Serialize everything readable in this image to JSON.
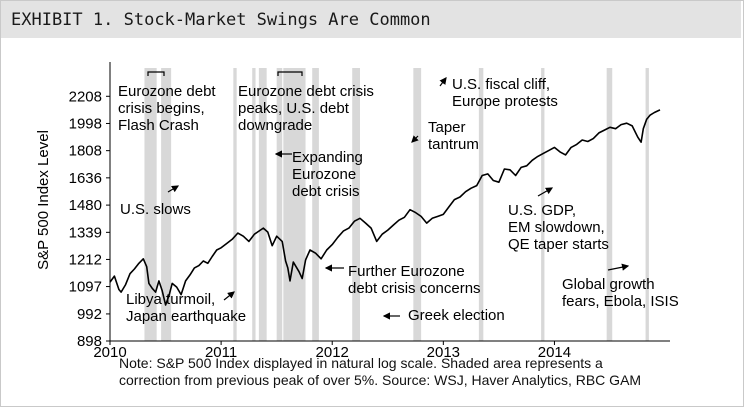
{
  "header": {
    "exhibit": "EXHIBIT 1.",
    "title": "Stock-Market Swings Are Common"
  },
  "note": {
    "line1": "Note: S&P 500 Index displayed in natural log scale. Shaded area represents a",
    "line2": "correction from previous peak of over 5%. Source: WSJ, Haver Analytics, RBC GAM"
  },
  "colors": {
    "line": "#000000",
    "shade": "#d8d8d8",
    "header_bg": "#e3e3e3"
  },
  "chart_data": {
    "type": "line",
    "title": "",
    "xlabel": "",
    "ylabel": "S&P 500 Index Level",
    "y_scale": "log",
    "xlim": [
      2010.0,
      2014.95
    ],
    "ylim": [
      898,
      2450
    ],
    "x_ticks": [
      {
        "value": 2010,
        "label": "2010"
      },
      {
        "value": 2011,
        "label": "2011"
      },
      {
        "value": 2012,
        "label": "2012"
      },
      {
        "value": 2013,
        "label": "2013"
      },
      {
        "value": 2014,
        "label": "2014"
      }
    ],
    "y_ticks": [
      898,
      992,
      1097,
      1212,
      1339,
      1480,
      1636,
      1808,
      1998,
      2208
    ],
    "series": [
      {
        "x": [
          2010.0,
          2010.04,
          2010.08,
          2010.1,
          2010.14,
          2010.18,
          2010.22,
          2010.26,
          2010.3,
          2010.33,
          2010.35,
          2010.38,
          2010.41,
          2010.44,
          2010.47,
          2010.5,
          2010.53,
          2010.56,
          2010.6,
          2010.64,
          2010.68,
          2010.72,
          2010.76,
          2010.8,
          2010.84,
          2010.88,
          2010.92,
          2010.96,
          2011.0,
          2011.05,
          2011.1,
          2011.15,
          2011.2,
          2011.25,
          2011.3,
          2011.34,
          2011.38,
          2011.42,
          2011.46,
          2011.5,
          2011.55,
          2011.58,
          2011.6,
          2011.62,
          2011.65,
          2011.7,
          2011.73,
          2011.76,
          2011.8,
          2011.85,
          2011.9,
          2011.95,
          2012.0,
          2012.05,
          2012.1,
          2012.15,
          2012.2,
          2012.25,
          2012.3,
          2012.35,
          2012.4,
          2012.45,
          2012.5,
          2012.55,
          2012.6,
          2012.65,
          2012.7,
          2012.75,
          2012.8,
          2012.85,
          2012.9,
          2012.95,
          2013.0,
          2013.05,
          2013.1,
          2013.15,
          2013.2,
          2013.25,
          2013.3,
          2013.35,
          2013.4,
          2013.45,
          2013.5,
          2013.55,
          2013.6,
          2013.65,
          2013.7,
          2013.75,
          2013.8,
          2013.85,
          2013.9,
          2013.95,
          2014.0,
          2014.05,
          2014.1,
          2014.15,
          2014.2,
          2014.25,
          2014.3,
          2014.35,
          2014.4,
          2014.45,
          2014.5,
          2014.55,
          2014.6,
          2014.65,
          2014.7,
          2014.75,
          2014.78,
          2014.8,
          2014.83,
          2014.86,
          2014.9,
          2014.95
        ],
        "y": [
          1115,
          1140,
          1085,
          1075,
          1105,
          1150,
          1170,
          1195,
          1215,
          1180,
          1110,
          1090,
          1075,
          1120,
          1080,
          1025,
          1060,
          1110,
          1095,
          1065,
          1120,
          1145,
          1175,
          1185,
          1205,
          1195,
          1225,
          1255,
          1265,
          1285,
          1305,
          1335,
          1320,
          1295,
          1330,
          1345,
          1360,
          1340,
          1275,
          1320,
          1295,
          1205,
          1175,
          1120,
          1200,
          1160,
          1130,
          1210,
          1255,
          1240,
          1215,
          1255,
          1280,
          1315,
          1345,
          1360,
          1395,
          1410,
          1385,
          1360,
          1295,
          1330,
          1350,
          1375,
          1400,
          1415,
          1455,
          1440,
          1420,
          1385,
          1410,
          1420,
          1430,
          1470,
          1510,
          1525,
          1555,
          1575,
          1590,
          1650,
          1660,
          1620,
          1610,
          1690,
          1685,
          1650,
          1700,
          1710,
          1745,
          1770,
          1790,
          1810,
          1830,
          1800,
          1780,
          1830,
          1850,
          1880,
          1870,
          1890,
          1930,
          1950,
          1970,
          1960,
          1990,
          2000,
          1980,
          1900,
          1865,
          1960,
          2030,
          2060,
          2080,
          2100
        ]
      }
    ],
    "corrections": [
      [
        2010.31,
        2010.42
      ],
      [
        2010.46,
        2010.55
      ],
      [
        2011.11,
        2011.14
      ],
      [
        2011.28,
        2011.31
      ],
      [
        2011.34,
        2011.41
      ],
      [
        2011.5,
        2011.55
      ],
      [
        2011.56,
        2011.76
      ],
      [
        2011.82,
        2011.88
      ],
      [
        2012.18,
        2012.25
      ],
      [
        2012.73,
        2012.8
      ],
      [
        2013.32,
        2013.36
      ],
      [
        2013.88,
        2013.91
      ],
      [
        2014.47,
        2014.52
      ],
      [
        2014.82,
        2014.85
      ]
    ],
    "annotations": [
      {
        "lines": [
          "Eurozone debt",
          "crisis begins,",
          "Flash Crash"
        ]
      },
      {
        "lines": [
          "Eurozone debt crisis",
          "peaks, U.S. debt",
          "downgrade"
        ]
      },
      {
        "lines": [
          "U.S. fiscal cliff,",
          "Europe protests"
        ]
      },
      {
        "lines": [
          "Taper",
          "tantrum"
        ]
      },
      {
        "lines": [
          "Expanding",
          "Eurozone",
          "debt crisis"
        ]
      },
      {
        "lines": [
          "U.S. slows"
        ]
      },
      {
        "lines": [
          "U.S. GDP,",
          "EM slowdown,",
          "QE taper starts"
        ]
      },
      {
        "lines": [
          "Further Eurozone",
          "debt crisis concerns"
        ]
      },
      {
        "lines": [
          "Global growth",
          "fears, Ebola, ISIS"
        ]
      },
      {
        "lines": [
          "Libya turmoil,",
          "Japan earthquake"
        ]
      },
      {
        "lines": [
          "Greek election"
        ]
      }
    ]
  }
}
